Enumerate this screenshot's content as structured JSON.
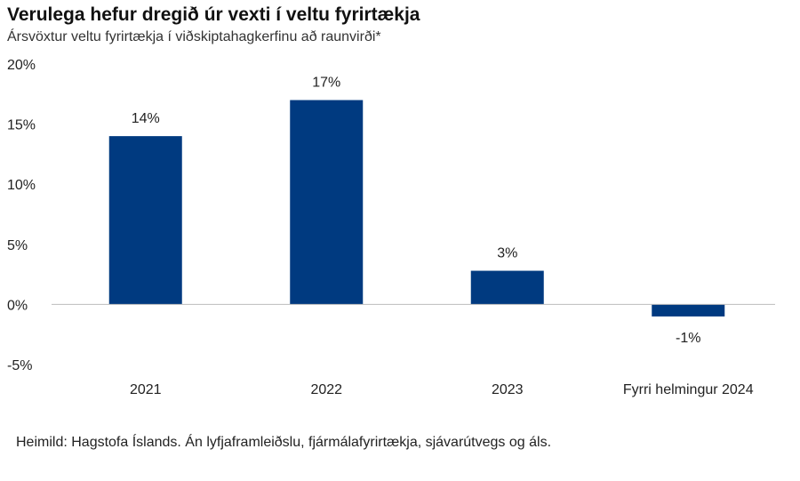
{
  "chart_data": {
    "type": "bar",
    "title": "Verulega hefur dregið úr vexti í veltu fyrirtækja",
    "subtitle": "Ársvöxtur veltu fyrirtækja í viðskiptahagkerfinu að raunvirði*",
    "categories": [
      "2021",
      "2022",
      "2023",
      "Fyrri helmingur 2024"
    ],
    "values": [
      14,
      17,
      2.8,
      -1
    ],
    "data_labels": [
      "14%",
      "17%",
      "3%",
      "-1%"
    ],
    "ylim": [
      -5,
      20
    ],
    "yticks": [
      20,
      15,
      10,
      5,
      0,
      -5
    ],
    "ytick_labels": [
      "20%",
      "15%",
      "10%",
      "5%",
      "0%",
      "-5%"
    ],
    "bar_color": "#003a80",
    "grid": false,
    "source": "Heimild: Hagstofa Íslands. Án lyfjaframleiðslu, fjármálafyrirtækja, sjávarútvegs og áls."
  }
}
